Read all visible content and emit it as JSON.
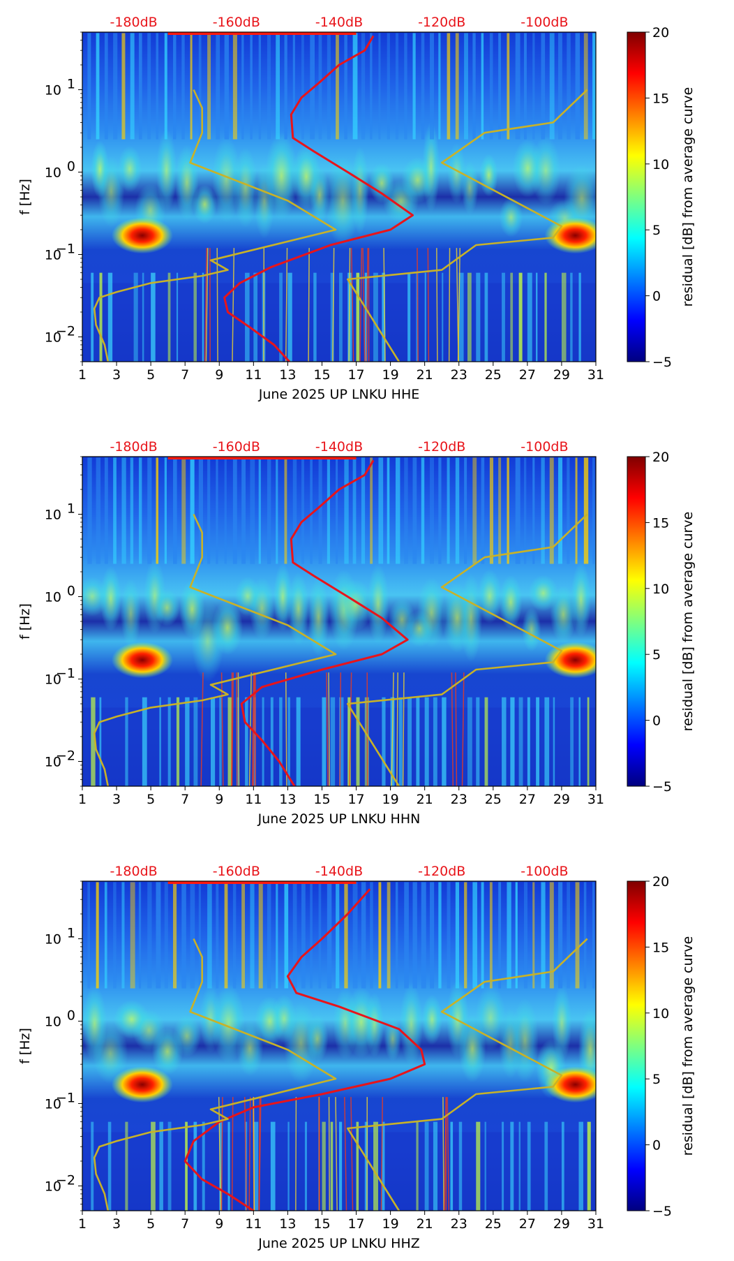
{
  "figure": {
    "xlabel_template": "June 2025 UP LNKU",
    "colorbar": {
      "label": "residual [dB] from average curve",
      "min": -5,
      "max": 20,
      "ticks": [
        -5,
        0,
        5,
        10,
        15,
        20
      ],
      "tick_labels": [
        "−5",
        "0",
        "5",
        "10",
        "15",
        "20"
      ],
      "colormap": [
        "#00007f",
        "#0000ff",
        "#007fff",
        "#00ffff",
        "#7fff7f",
        "#ffff00",
        "#ff7f00",
        "#ff0000",
        "#7f0000"
      ]
    },
    "x_ticks": [
      1,
      3,
      5,
      7,
      9,
      11,
      13,
      15,
      17,
      19,
      21,
      23,
      25,
      27,
      29,
      31
    ],
    "y_ticks": [
      {
        "value": 0.01,
        "base": "10",
        "exp": "−2"
      },
      {
        "value": 0.1,
        "base": "10",
        "exp": "−1"
      },
      {
        "value": 1,
        "base": "10",
        "exp": "0"
      },
      {
        "value": 10,
        "base": "10",
        "exp": "1"
      }
    ],
    "ylabel": "f [Hz]",
    "db_labels": [
      "-180dB",
      "-160dB",
      "-140dB",
      "-120dB",
      "-100dB"
    ],
    "colors": {
      "red_curve": "#e8141a",
      "gold_curve": "#c8b228",
      "background": "#1a3fd0"
    }
  },
  "chart_data": [
    {
      "type": "heatmap",
      "title": "",
      "xlabel": "June 2025 UP LNKU  HHE",
      "ylabel": "f [Hz]",
      "channel": "HHE",
      "xlim": [
        1,
        31
      ],
      "ylim": [
        0.005,
        50
      ],
      "yscale": "log",
      "top_axis_labels": [
        "-180dB",
        "-160dB",
        "-140dB",
        "-120dB",
        "-100dB"
      ],
      "series": [
        {
          "name": "median PSD (red)",
          "x": [
            18,
            17.5,
            16,
            14.8,
            13.8,
            13.2,
            13.3,
            14.5,
            16.5,
            18.5,
            20.3,
            19,
            15.5,
            12,
            10.2,
            9.3,
            9.5,
            10.8,
            12.2,
            13.1
          ],
          "y": [
            45,
            30,
            20,
            12,
            8,
            5,
            2.6,
            1.8,
            1.0,
            0.55,
            0.3,
            0.2,
            0.13,
            0.07,
            0.045,
            0.03,
            0.02,
            0.013,
            0.008,
            0.005
          ]
        },
        {
          "name": "noise model low (gold)",
          "x": [
            2.5,
            2.3,
            1.8,
            1.7,
            2.0,
            3.0,
            5.0,
            8.0,
            9.5,
            8.5,
            15.8,
            13.0,
            7.3,
            8.0,
            8.0,
            7.5
          ],
          "y": [
            0.005,
            0.008,
            0.014,
            0.022,
            0.03,
            0.035,
            0.045,
            0.055,
            0.065,
            0.085,
            0.2,
            0.45,
            1.3,
            3.0,
            6.0,
            10
          ]
        },
        {
          "name": "noise model high (gold)",
          "x": [
            19.5,
            16.5,
            22.0,
            24.0,
            28.5,
            29.0,
            22.0,
            24.5,
            28.5,
            30.5
          ],
          "y": [
            0.005,
            0.05,
            0.065,
            0.13,
            0.16,
            0.22,
            1.3,
            3.0,
            4.0,
            10
          ]
        }
      ],
      "hotspots": [
        {
          "x": 4.5,
          "y": 0.17,
          "value": 20
        },
        {
          "x": 29.8,
          "y": 0.17,
          "value": 20
        }
      ]
    },
    {
      "type": "heatmap",
      "title": "",
      "xlabel": "June 2025 UP LNKU  HHN",
      "ylabel": "f [Hz]",
      "channel": "HHN",
      "xlim": [
        1,
        31
      ],
      "ylim": [
        0.005,
        50
      ],
      "yscale": "log",
      "top_axis_labels": [
        "-180dB",
        "-160dB",
        "-140dB",
        "-120dB",
        "-100dB"
      ],
      "series": [
        {
          "name": "median PSD (red)",
          "x": [
            18,
            17.5,
            16,
            14.8,
            13.8,
            13.2,
            13.3,
            14.5,
            16.5,
            18.5,
            20.0,
            18.5,
            15.0,
            11.5,
            10.3,
            10.5,
            11.5,
            12.5,
            13.4
          ],
          "y": [
            45,
            30,
            20,
            12,
            8,
            5,
            2.6,
            1.8,
            1.0,
            0.55,
            0.3,
            0.2,
            0.13,
            0.08,
            0.05,
            0.03,
            0.018,
            0.01,
            0.005
          ]
        },
        {
          "name": "noise model low (gold)",
          "x": [
            2.5,
            2.3,
            1.8,
            1.7,
            2.0,
            3.0,
            5.0,
            8.0,
            9.5,
            8.5,
            15.8,
            13.0,
            7.3,
            8.0,
            8.0,
            7.5
          ],
          "y": [
            0.005,
            0.008,
            0.014,
            0.022,
            0.03,
            0.035,
            0.045,
            0.055,
            0.065,
            0.085,
            0.2,
            0.45,
            1.3,
            3.0,
            6.0,
            10
          ]
        },
        {
          "name": "noise model high (gold)",
          "x": [
            19.5,
            16.5,
            22.0,
            24.0,
            28.5,
            29.0,
            22.0,
            24.5,
            28.5,
            30.5
          ],
          "y": [
            0.005,
            0.05,
            0.065,
            0.13,
            0.16,
            0.22,
            1.3,
            3.0,
            4.0,
            10
          ]
        }
      ],
      "hotspots": [
        {
          "x": 4.5,
          "y": 0.17,
          "value": 20
        },
        {
          "x": 29.8,
          "y": 0.17,
          "value": 20
        }
      ]
    },
    {
      "type": "heatmap",
      "title": "",
      "xlabel": "June 2025 UP LNKU  HHZ",
      "ylabel": "f [Hz]",
      "channel": "HHZ",
      "xlim": [
        1,
        31
      ],
      "ylim": [
        0.005,
        50
      ],
      "yscale": "log",
      "top_axis_labels": [
        "-180dB",
        "-160dB",
        "-140dB",
        "-120dB",
        "-100dB"
      ],
      "series": [
        {
          "name": "median PSD (red)",
          "x": [
            17.8,
            16.5,
            15.0,
            13.8,
            13.0,
            13.5,
            16.0,
            19.5,
            20.8,
            21.0,
            19.0,
            15.0,
            11.0,
            9.0,
            7.5,
            7.0,
            8.0,
            9.5,
            11.0
          ],
          "y": [
            40,
            20,
            10,
            6,
            3.5,
            2.2,
            1.5,
            0.8,
            0.45,
            0.3,
            0.2,
            0.13,
            0.09,
            0.06,
            0.035,
            0.02,
            0.012,
            0.008,
            0.005
          ]
        },
        {
          "name": "noise model low (gold)",
          "x": [
            2.5,
            2.3,
            1.8,
            1.7,
            2.0,
            3.0,
            5.0,
            8.0,
            9.5,
            8.5,
            15.8,
            13.0,
            7.3,
            8.0,
            8.0,
            7.5
          ],
          "y": [
            0.005,
            0.008,
            0.014,
            0.022,
            0.03,
            0.035,
            0.045,
            0.055,
            0.065,
            0.085,
            0.2,
            0.45,
            1.3,
            3.0,
            6.0,
            10
          ]
        },
        {
          "name": "noise model high (gold)",
          "x": [
            19.5,
            16.5,
            22.0,
            24.0,
            28.5,
            29.0,
            22.0,
            24.5,
            28.5,
            30.5
          ],
          "y": [
            0.005,
            0.05,
            0.065,
            0.13,
            0.16,
            0.22,
            1.3,
            3.0,
            4.0,
            10
          ]
        }
      ],
      "hotspots": [
        {
          "x": 4.5,
          "y": 0.17,
          "value": 20
        },
        {
          "x": 29.8,
          "y": 0.17,
          "value": 20
        }
      ]
    }
  ]
}
